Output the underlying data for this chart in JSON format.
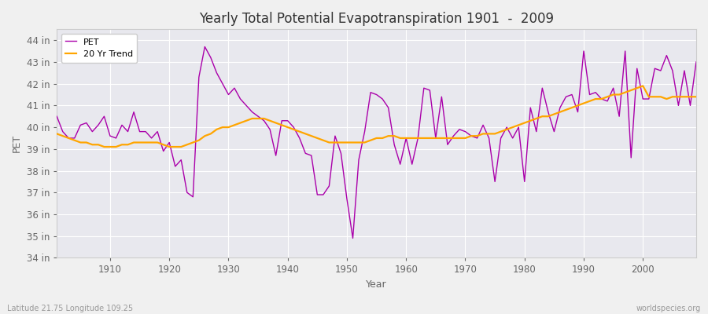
{
  "title": "Yearly Total Potential Evapotranspiration 1901  -  2009",
  "xlabel": "Year",
  "ylabel": "PET",
  "subtitle_left": "Latitude 21.75 Longitude 109.25",
  "subtitle_right": "worldspecies.org",
  "pet_color": "#aa00aa",
  "trend_color": "#FFA500",
  "fig_bg": "#f0f0f0",
  "plot_bg": "#e8e8ee",
  "ylim": [
    34,
    44.5
  ],
  "yticks": [
    34,
    35,
    36,
    37,
    38,
    39,
    40,
    41,
    42,
    43,
    44
  ],
  "xlim": [
    1901,
    2009
  ],
  "xticks": [
    1910,
    1920,
    1930,
    1940,
    1950,
    1960,
    1970,
    1980,
    1990,
    2000
  ],
  "years": [
    1901,
    1902,
    1903,
    1904,
    1905,
    1906,
    1907,
    1908,
    1909,
    1910,
    1911,
    1912,
    1913,
    1914,
    1915,
    1916,
    1917,
    1918,
    1919,
    1920,
    1921,
    1922,
    1923,
    1924,
    1925,
    1926,
    1927,
    1928,
    1929,
    1930,
    1931,
    1932,
    1933,
    1934,
    1935,
    1936,
    1937,
    1938,
    1939,
    1940,
    1941,
    1942,
    1943,
    1944,
    1945,
    1946,
    1947,
    1948,
    1949,
    1950,
    1951,
    1952,
    1953,
    1954,
    1955,
    1956,
    1957,
    1958,
    1959,
    1960,
    1961,
    1962,
    1963,
    1964,
    1965,
    1966,
    1967,
    1968,
    1969,
    1970,
    1971,
    1972,
    1973,
    1974,
    1975,
    1976,
    1977,
    1978,
    1979,
    1980,
    1981,
    1982,
    1983,
    1984,
    1985,
    1986,
    1987,
    1988,
    1989,
    1990,
    1991,
    1992,
    1993,
    1994,
    1995,
    1996,
    1997,
    1998,
    1999,
    2000,
    2001,
    2002,
    2003,
    2004,
    2005,
    2006,
    2007,
    2008,
    2009
  ],
  "pet": [
    40.5,
    39.8,
    39.5,
    39.5,
    40.1,
    40.2,
    39.8,
    40.1,
    40.5,
    39.6,
    39.5,
    40.1,
    39.8,
    40.7,
    39.8,
    39.8,
    39.5,
    39.8,
    38.9,
    39.3,
    38.2,
    38.5,
    37.0,
    36.8,
    42.3,
    43.7,
    43.2,
    42.5,
    42.0,
    41.5,
    41.8,
    41.3,
    41.0,
    40.7,
    40.5,
    40.3,
    39.9,
    38.7,
    40.3,
    40.3,
    40.0,
    39.5,
    38.8,
    38.7,
    36.9,
    36.9,
    37.3,
    39.6,
    38.8,
    36.7,
    34.9,
    38.5,
    39.8,
    41.6,
    41.5,
    41.3,
    40.9,
    39.2,
    38.3,
    39.5,
    38.3,
    39.5,
    41.8,
    41.7,
    39.5,
    41.4,
    39.2,
    39.6,
    39.9,
    39.8,
    39.6,
    39.5,
    40.1,
    39.5,
    37.5,
    39.5,
    40.0,
    39.5,
    40.0,
    37.5,
    40.9,
    39.8,
    41.8,
    40.7,
    39.8,
    40.9,
    41.4,
    41.5,
    40.7,
    43.5,
    41.5,
    41.6,
    41.3,
    41.2,
    41.8,
    40.5,
    43.5,
    38.6,
    42.7,
    41.3,
    41.3,
    42.7,
    42.6,
    43.3,
    42.6,
    41.0,
    42.6,
    41.0,
    43.0
  ],
  "trend": [
    39.7,
    39.6,
    39.5,
    39.4,
    39.3,
    39.3,
    39.2,
    39.2,
    39.1,
    39.1,
    39.1,
    39.2,
    39.2,
    39.3,
    39.3,
    39.3,
    39.3,
    39.3,
    39.2,
    39.1,
    39.1,
    39.1,
    39.2,
    39.3,
    39.4,
    39.6,
    39.7,
    39.9,
    40.0,
    40.0,
    40.1,
    40.2,
    40.3,
    40.4,
    40.4,
    40.4,
    40.3,
    40.2,
    40.1,
    40.0,
    39.9,
    39.8,
    39.7,
    39.6,
    39.5,
    39.4,
    39.3,
    39.3,
    39.3,
    39.3,
    39.3,
    39.3,
    39.3,
    39.4,
    39.5,
    39.5,
    39.6,
    39.6,
    39.5,
    39.5,
    39.5,
    39.5,
    39.5,
    39.5,
    39.5,
    39.5,
    39.5,
    39.5,
    39.5,
    39.5,
    39.6,
    39.6,
    39.7,
    39.7,
    39.7,
    39.8,
    39.9,
    40.0,
    40.1,
    40.2,
    40.3,
    40.4,
    40.5,
    40.5,
    40.6,
    40.7,
    40.8,
    40.9,
    41.0,
    41.1,
    41.2,
    41.3,
    41.3,
    41.4,
    41.5,
    41.5,
    41.6,
    41.7,
    41.8,
    41.9,
    41.4,
    41.4,
    41.4,
    41.3,
    41.4,
    41.4,
    41.4,
    41.4,
    41.4
  ]
}
